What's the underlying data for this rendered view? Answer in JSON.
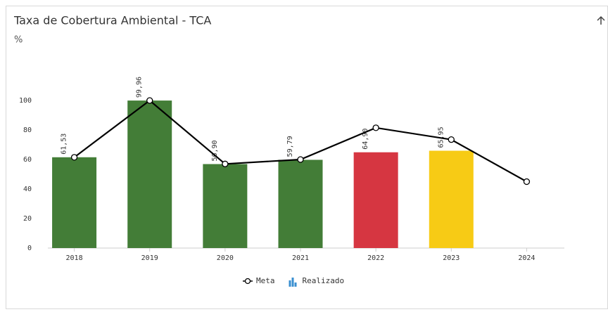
{
  "chart_data": {
    "type": "bar_line",
    "title": "Taxa de Cobertura Ambiental - TCA",
    "y_label": "%",
    "categories": [
      "2018",
      "2019",
      "2020",
      "2021",
      "2022",
      "2023",
      "2024"
    ],
    "ylim": [
      0,
      130
    ],
    "yticks": [
      0,
      20,
      40,
      60,
      80,
      100
    ],
    "series": [
      {
        "name": "Meta",
        "type": "line",
        "color": "#000000",
        "values": [
          61.5,
          100,
          57,
          60,
          81.5,
          73.5,
          45
        ]
      },
      {
        "name": "Realizado",
        "type": "bar",
        "color": "#3a8fd0",
        "colors": [
          "#437d37",
          "#437d37",
          "#437d37",
          "#437d37",
          "#d63641",
          "#f7cb15",
          null
        ],
        "values": [
          61.53,
          99.96,
          56.9,
          59.79,
          64.9,
          65.95,
          null
        ],
        "value_labels": [
          "61,53",
          "99,96",
          "56,90",
          "59,79",
          "64,90",
          "65,95",
          null
        ]
      }
    ]
  }
}
